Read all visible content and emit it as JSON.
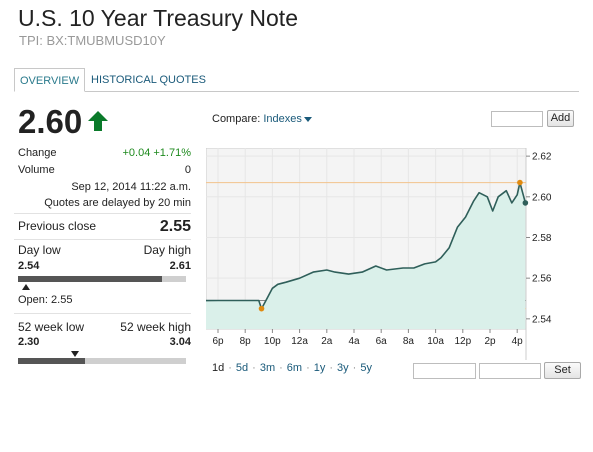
{
  "header": {
    "title": "U.S. 10 Year Treasury Note",
    "subtitle": "TPI: BX:TMUBMUSD10Y"
  },
  "tabs": [
    {
      "label": "OVERVIEW",
      "active": true
    },
    {
      "label": "HISTORICAL QUOTES",
      "active": false
    }
  ],
  "quote": {
    "price": "2.60",
    "direction": "up",
    "change_label": "Change",
    "change_value": "+0.04 +1.71%",
    "volume_label": "Volume",
    "volume_value": "0",
    "timestamp": "Sep 12, 2014 11:22 a.m.",
    "delay_note": "Quotes are delayed by 20 min",
    "prev_close_label": "Previous close",
    "prev_close_value": "2.55",
    "day_low_label": "Day low",
    "day_high_label": "Day high",
    "day_low": "2.54",
    "day_high": "2.61",
    "day_range_fill": 0.86,
    "day_range_marker": 0.05,
    "open_label": "Open: 2.55",
    "wk52_low_label": "52 week low",
    "wk52_high_label": "52 week high",
    "wk52_low": "2.30",
    "wk52_high": "3.04",
    "wk52_fill": 0.4,
    "wk52_marker": 0.34
  },
  "compare": {
    "label": "Compare: ",
    "dropdown": "Indexes",
    "add_button": "Add"
  },
  "chart_data": {
    "type": "area",
    "y_ticks": [
      "2.62",
      "2.60",
      "2.58",
      "2.56",
      "2.54"
    ],
    "ylim": [
      2.535,
      2.624
    ],
    "x_ticks": [
      "6p",
      "8p",
      "10p",
      "12a",
      "2a",
      "4a",
      "6a",
      "8a",
      "10a",
      "12p",
      "2p",
      "4p"
    ],
    "reference_levels": {
      "high": 2.607,
      "low": 2.545,
      "previous_close": 2.549
    },
    "series": [
      {
        "x": [
          0,
          1.5,
          1.6,
          1.8,
          2.0,
          2.2,
          2.5,
          3.0,
          3.5,
          4.0,
          4.3,
          4.8,
          5.3,
          5.8,
          6.2,
          6.8,
          7.2,
          7.6,
          8.0,
          8.2,
          8.5,
          8.8,
          9.1,
          9.4,
          9.6,
          9.9,
          10.1,
          10.3,
          10.6,
          10.8,
          11.0,
          11.1,
          11.3
        ],
        "y": [
          2.549,
          2.549,
          2.545,
          2.55,
          2.555,
          2.557,
          2.558,
          2.56,
          2.563,
          2.564,
          2.563,
          2.562,
          2.563,
          2.566,
          2.564,
          2.565,
          2.565,
          2.567,
          2.568,
          2.57,
          2.575,
          2.585,
          2.59,
          2.598,
          2.602,
          2.6,
          2.593,
          2.6,
          2.603,
          2.597,
          2.601,
          2.607,
          2.597
        ]
      }
    ],
    "markers": [
      {
        "x": 1.6,
        "y": 2.545,
        "label": "low"
      },
      {
        "x": 11.1,
        "y": 2.607,
        "label": "high"
      }
    ],
    "last_point": {
      "x": 11.3,
      "y": 2.597
    }
  },
  "timeframes": [
    "1d",
    "5d",
    "3m",
    "6m",
    "1y",
    "3y",
    "5y"
  ],
  "active_timeframe": "1d",
  "set_button": "Set",
  "colors": {
    "line": "#2f5f5a",
    "area": "#daf0ea",
    "accent": "#0a7a2a",
    "reference_line": "#f2c38c",
    "marker": "#e08a10"
  }
}
